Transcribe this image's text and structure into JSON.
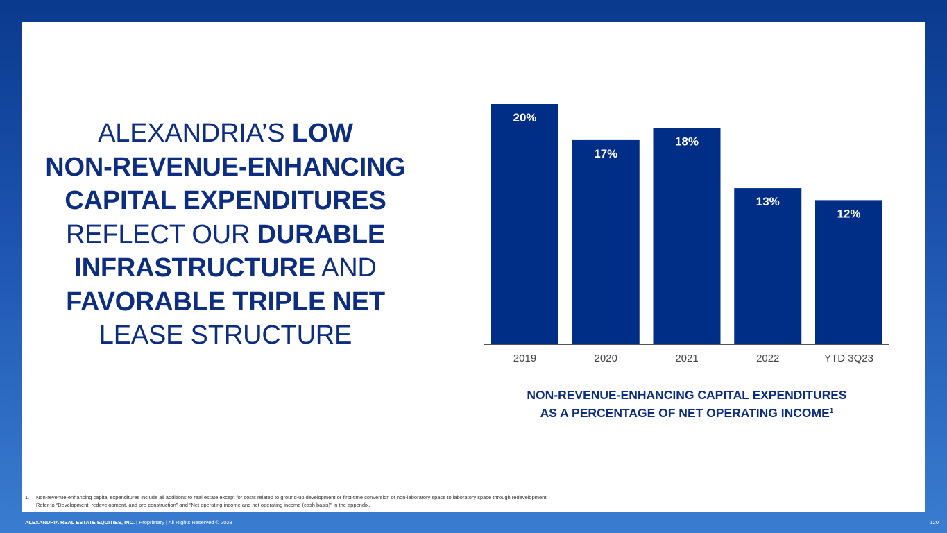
{
  "headline": {
    "l1a": "ALEXANDRIA’S ",
    "l1b": "LOW",
    "l2": "NON-REVENUE-ENHANCING",
    "l3": "CAPITAL EXPENDITURES",
    "l4a": "REFLECT OUR ",
    "l4b": "DURABLE",
    "l5a": "INFRASTRUCTURE",
    "l5b": " AND",
    "l6": "FAVORABLE TRIPLE NET",
    "l7": "LEASE STRUCTURE"
  },
  "chart_title": {
    "line1": "NON-REVENUE-ENHANCING CAPITAL EXPENDITURES",
    "line2": "AS A PERCENTAGE OF NET OPERATING INCOME",
    "sup": "1"
  },
  "chart_data": {
    "type": "bar",
    "title": "NON-REVENUE-ENHANCING CAPITAL EXPENDITURES AS A PERCENTAGE OF NET OPERATING INCOME",
    "categories": [
      "2019",
      "2020",
      "2021",
      "2022",
      "YTD 3Q23"
    ],
    "values": [
      20,
      17,
      18,
      13,
      12
    ],
    "labels": [
      "20%",
      "17%",
      "18%",
      "13%",
      "12%"
    ],
    "xlabel": "",
    "ylabel": "",
    "ylim": [
      0,
      20
    ],
    "grid": false,
    "bar_color": "#002d86"
  },
  "footnote": {
    "number": "1.",
    "line1": "Non-revenue-enhancing capital expenditures include all additions to real estate except for costs related to ground-up development or first-time conversion of non-laboratory space to laboratory space through redevelopment.",
    "line2": "Refer to “Development, redevelopment, and pre-construction” and “Net operating income and net operating income (cash basis)” in the appendix."
  },
  "footer": {
    "company": "ALEXANDRIA REAL ESTATE EQUITIES, INC.",
    "rest": " | Proprietary | All Rights Reserved © 2023",
    "page": "120"
  },
  "colors": {
    "brand_blue": "#0d2d80",
    "bar": "#002d86"
  }
}
